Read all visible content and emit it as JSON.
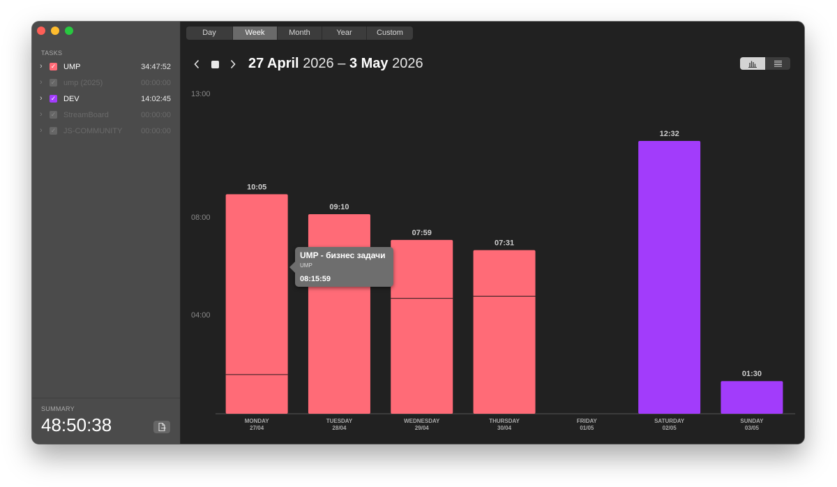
{
  "sidebar": {
    "tasks_title": "TASKS",
    "tasks": [
      {
        "name": "UMP",
        "time": "34:47:52",
        "color": "#ff6b77",
        "enabled": true
      },
      {
        "name": "ump (2025)",
        "time": "00:00:00",
        "color": "#666666",
        "enabled": false
      },
      {
        "name": "DEV",
        "time": "14:02:45",
        "color": "#a23cfb",
        "enabled": true
      },
      {
        "name": "StreamBoard",
        "time": "00:00:00",
        "color": "#666666",
        "enabled": false
      },
      {
        "name": "JS-COMMUNITY",
        "time": "00:00:00",
        "color": "#666666",
        "enabled": false
      }
    ],
    "summary_title": "SUMMARY",
    "summary_value": "48:50:38",
    "icons": {
      "expand": "chevron-right-icon",
      "checkbox": "checkmark-icon",
      "export": "export-document-icon"
    }
  },
  "tabs": [
    {
      "label": "Day",
      "active": false
    },
    {
      "label": "Week",
      "active": true
    },
    {
      "label": "Month",
      "active": false
    },
    {
      "label": "Year",
      "active": false
    },
    {
      "label": "Custom",
      "active": false
    }
  ],
  "nav": {
    "prev_icon": "chevron-left-icon",
    "stop_icon": "stop-icon",
    "next_icon": "chevron-right-icon",
    "range_start_bold": "27 April",
    "range_start_year": "2026",
    "range_sep": "–",
    "range_end_bold": "3 May",
    "range_end_year": "2026"
  },
  "view_toggle": [
    {
      "icon": "bar-chart-icon",
      "active": true
    },
    {
      "icon": "list-icon",
      "active": false
    }
  ],
  "tooltip": {
    "title": "UMP - бизнес задачи",
    "subtitle": "UMP",
    "time": "08:15:59"
  },
  "chart_data": {
    "type": "bar",
    "y_ticks": [
      "04:00",
      "08:00",
      "13:00"
    ],
    "y_tick_hours": [
      4,
      8,
      13
    ],
    "ylim_hours": [
      0,
      13.5
    ],
    "grid": false,
    "categories": [
      {
        "day": "MONDAY",
        "date": "27/04"
      },
      {
        "day": "TUESDAY",
        "date": "28/04"
      },
      {
        "day": "WEDNESDAY",
        "date": "29/04"
      },
      {
        "day": "THURSDAY",
        "date": "30/04"
      },
      {
        "day": "FRIDAY",
        "date": "01/05"
      },
      {
        "day": "SATURDAY",
        "date": "02/05"
      },
      {
        "day": "SUNDAY",
        "date": "03/05"
      }
    ],
    "bars": [
      {
        "label": "10:05",
        "hours": 10.083,
        "color": "#ff6b77",
        "split_hours": 1.8
      },
      {
        "label": "09:10",
        "hours": 9.167,
        "color": "#ff6b77",
        "split_hours": null
      },
      {
        "label": "07:59",
        "hours": 7.983,
        "color": "#ff6b77",
        "split_hours": 5.3
      },
      {
        "label": "07:31",
        "hours": 7.517,
        "color": "#ff6b77",
        "split_hours": 5.4
      },
      {
        "label": "",
        "hours": 0,
        "color": "#ff6b77",
        "split_hours": null
      },
      {
        "label": "12:32",
        "hours": 12.533,
        "color": "#a23cfb",
        "split_hours": null
      },
      {
        "label": "01:30",
        "hours": 1.5,
        "color": "#a23cfb",
        "split_hours": null
      }
    ]
  }
}
